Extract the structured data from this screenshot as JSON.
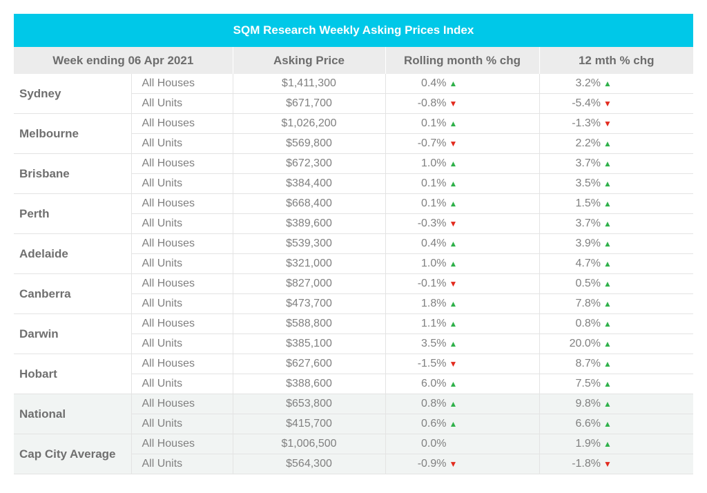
{
  "title": "SQM Research Weekly Asking Prices Index",
  "headers": [
    "Week ending 06 Apr 2021",
    "Asking Price",
    "Rolling month % chg",
    "12 mth % chg"
  ],
  "colors": {
    "title_bg": "#00c8e8",
    "up": "#2fb14a",
    "down": "#e22b1e",
    "header_bg": "#ececec"
  },
  "icons": {
    "up": "green-up-triangle",
    "down": "red-down-triangle"
  },
  "rows": [
    {
      "city": "Sydney",
      "items": [
        {
          "type": "All Houses",
          "price": "$1,411,300",
          "month": "0.4%",
          "month_dir": "up",
          "year": "3.2%",
          "year_dir": "up"
        },
        {
          "type": "All Units",
          "price": "$671,700",
          "month": "-0.8%",
          "month_dir": "down",
          "year": "-5.4%",
          "year_dir": "down"
        }
      ]
    },
    {
      "city": "Melbourne",
      "items": [
        {
          "type": "All Houses",
          "price": "$1,026,200",
          "month": "0.1%",
          "month_dir": "up",
          "year": "-1.3%",
          "year_dir": "down"
        },
        {
          "type": "All Units",
          "price": "$569,800",
          "month": "-0.7%",
          "month_dir": "down",
          "year": "2.2%",
          "year_dir": "up"
        }
      ]
    },
    {
      "city": "Brisbane",
      "items": [
        {
          "type": "All Houses",
          "price": "$672,300",
          "month": "1.0%",
          "month_dir": "up",
          "year": "3.7%",
          "year_dir": "up"
        },
        {
          "type": "All Units",
          "price": "$384,400",
          "month": "0.1%",
          "month_dir": "up",
          "year": "3.5%",
          "year_dir": "up"
        }
      ]
    },
    {
      "city": "Perth",
      "items": [
        {
          "type": "All Houses",
          "price": "$668,400",
          "month": "0.1%",
          "month_dir": "up",
          "year": "1.5%",
          "year_dir": "up"
        },
        {
          "type": "All Units",
          "price": "$389,600",
          "month": "-0.3%",
          "month_dir": "down",
          "year": "3.7%",
          "year_dir": "up"
        }
      ]
    },
    {
      "city": "Adelaide",
      "items": [
        {
          "type": "All Houses",
          "price": "$539,300",
          "month": "0.4%",
          "month_dir": "up",
          "year": "3.9%",
          "year_dir": "up"
        },
        {
          "type": "All Units",
          "price": "$321,000",
          "month": "1.0%",
          "month_dir": "up",
          "year": "4.7%",
          "year_dir": "up"
        }
      ]
    },
    {
      "city": "Canberra",
      "items": [
        {
          "type": "All Houses",
          "price": "$827,000",
          "month": "-0.1%",
          "month_dir": "down",
          "year": "0.5%",
          "year_dir": "up"
        },
        {
          "type": "All Units",
          "price": "$473,700",
          "month": "1.8%",
          "month_dir": "up",
          "year": "7.8%",
          "year_dir": "up"
        }
      ]
    },
    {
      "city": "Darwin",
      "items": [
        {
          "type": "All Houses",
          "price": "$588,800",
          "month": "1.1%",
          "month_dir": "up",
          "year": "0.8%",
          "year_dir": "up"
        },
        {
          "type": "All Units",
          "price": "$385,100",
          "month": "3.5%",
          "month_dir": "up",
          "year": "20.0%",
          "year_dir": "up"
        }
      ]
    },
    {
      "city": "Hobart",
      "items": [
        {
          "type": "All Houses",
          "price": "$627,600",
          "month": "-1.5%",
          "month_dir": "down",
          "year": "8.7%",
          "year_dir": "up"
        },
        {
          "type": "All Units",
          "price": "$388,600",
          "month": "6.0%",
          "month_dir": "up",
          "year": "7.5%",
          "year_dir": "up"
        }
      ]
    },
    {
      "city": "National",
      "shaded": true,
      "items": [
        {
          "type": "All Houses",
          "price": "$653,800",
          "month": "0.8%",
          "month_dir": "up",
          "year": "9.8%",
          "year_dir": "up"
        },
        {
          "type": "All Units",
          "price": "$415,700",
          "month": "0.6%",
          "month_dir": "up",
          "year": "6.6%",
          "year_dir": "up"
        }
      ]
    },
    {
      "city": "Cap City Average",
      "shaded": true,
      "items": [
        {
          "type": "All Houses",
          "price": "$1,006,500",
          "month": "0.0%",
          "month_dir": "",
          "year": "1.9%",
          "year_dir": "up"
        },
        {
          "type": "All Units",
          "price": "$564,300",
          "month": "-0.9%",
          "month_dir": "down",
          "year": "-1.8%",
          "year_dir": "down"
        }
      ]
    }
  ]
}
